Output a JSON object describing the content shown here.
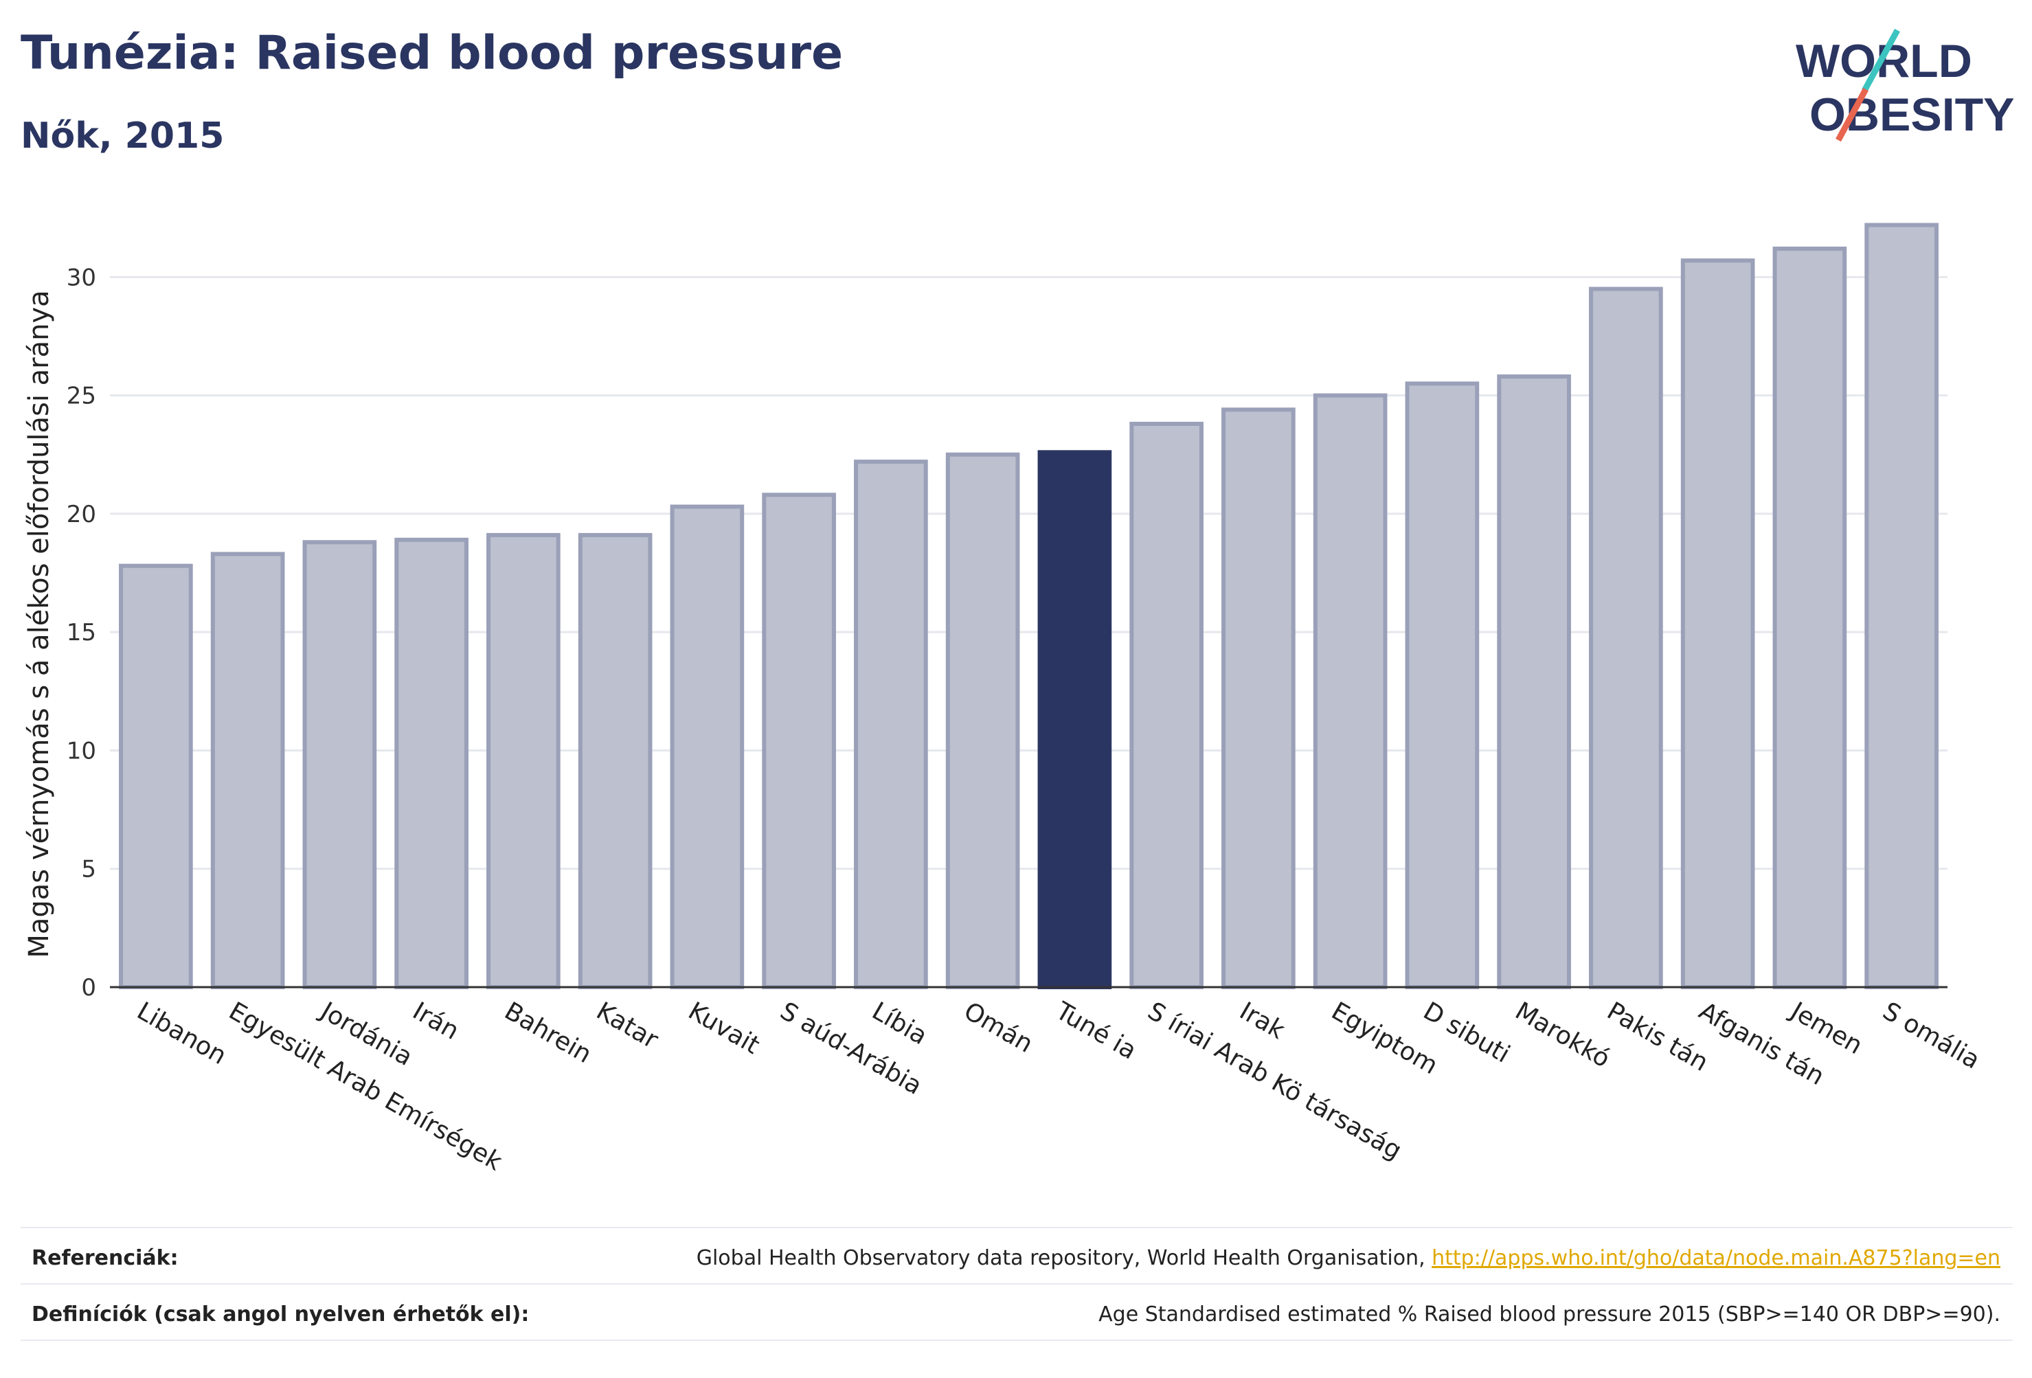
{
  "header": {
    "title": "Tunézia: Raised blood pressure",
    "subtitle": "Nők, 2015"
  },
  "logo": {
    "line1": "WORLD",
    "line2": "OBESITY",
    "slash_colors": [
      "#3cc4c0",
      "#e8654f"
    ]
  },
  "colors": {
    "bar": "#bcc0cf",
    "bar_stroke": "#9aa0b8",
    "highlight": "#2a3561",
    "grid": "#e6e8ee",
    "axis": "#333333",
    "link": "#e0a800"
  },
  "chart_data": {
    "type": "bar",
    "ylabel": "Magas vérnyomás s á alékos előfordulási aránya",
    "ylim": [
      0,
      33
    ],
    "yticks": [
      0,
      5,
      10,
      15,
      20,
      25,
      30
    ],
    "grid": true,
    "highlight": "Tuné ia",
    "categories": [
      "Libanon",
      "Egyesült Arab Emírségek",
      "Jordánia",
      "Irán",
      "Bahrein",
      "Katar",
      "Kuvait",
      "S aúd-Arábia",
      "Líbia",
      "Omán",
      "Tuné ia",
      "S íriai Arab Kö társaság",
      "Irak",
      "Egyiptom",
      "D sibuti",
      "Marokkó",
      "Pakis tán",
      "Afganis tán",
      "Jemen",
      "S omália"
    ],
    "values": [
      17.8,
      18.3,
      18.8,
      18.9,
      19.1,
      19.1,
      20.3,
      20.8,
      22.2,
      22.5,
      22.6,
      23.8,
      24.4,
      25.0,
      25.5,
      25.8,
      29.5,
      30.7,
      31.2,
      32.2
    ]
  },
  "footer": {
    "ref_label": "Referenciák:",
    "ref_text": "Global Health Observatory data repository, World Health Organisation, ",
    "ref_link": "http://apps.who.int/gho/data/node.main.A875?lang=en",
    "def_label": "Definíciók (csak angol nyelven érhetők el):",
    "def_text": "Age Standardised estimated % Raised blood pressure 2015 (SBP>=140 OR DBP>=90)."
  }
}
